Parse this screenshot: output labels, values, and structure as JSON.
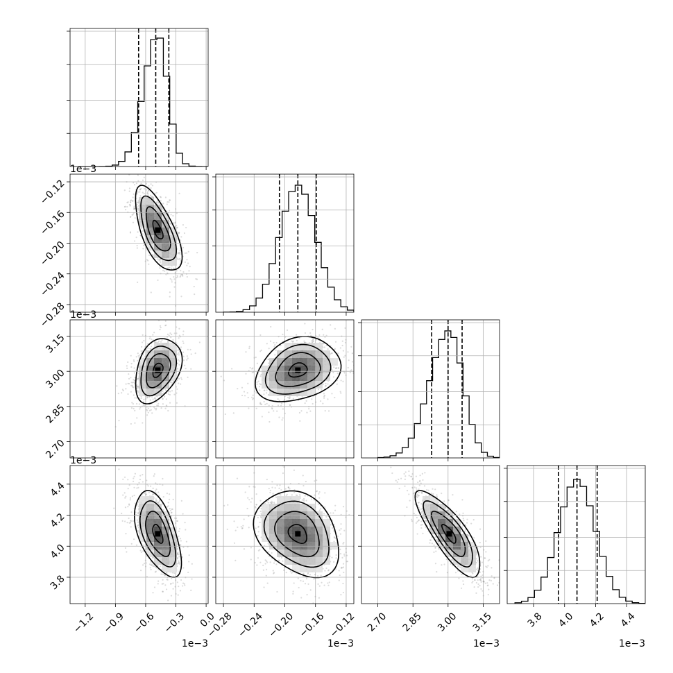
{
  "chart_data": {
    "type": "corner",
    "grid": true,
    "parameters": [
      {
        "range": [
          -1.35,
          0.02
        ],
        "ticks": [
          -1.2,
          -0.9,
          -0.6,
          -0.3,
          0.0
        ],
        "tick_labels": [
          "−1.2",
          "−0.9",
          "−0.6",
          "−0.3",
          "0.0"
        ],
        "offset_text": "1e−3",
        "quantiles": [
          -0.67,
          -0.5,
          -0.37
        ],
        "mean": -0.48,
        "sd": 0.1,
        "hist_peak": 0.93,
        "hist_xstart": -1.25
      },
      {
        "range": [
          -0.29,
          -0.11
        ],
        "ticks": [
          -0.28,
          -0.24,
          -0.2,
          -0.16,
          -0.12
        ],
        "tick_labels": [
          "−0.28",
          "−0.24",
          "−0.20",
          "−0.16",
          "−0.12"
        ],
        "offset_text": "1e−3",
        "quantiles": [
          -0.207,
          -0.183,
          -0.159
        ],
        "mean": -0.183,
        "sd": 0.024,
        "hist_peak": 0.92,
        "hist_xstart": -0.28
      },
      {
        "range": [
          2.63,
          3.22
        ],
        "ticks": [
          2.7,
          2.85,
          3.0,
          3.15
        ],
        "tick_labels": [
          "2.70",
          "2.85",
          "3.00",
          "3.15"
        ],
        "offset_text": "1e−3",
        "quantiles": [
          2.93,
          3.0,
          3.06
        ],
        "mean": 3.005,
        "sd": 0.06,
        "hist_peak": 0.92,
        "hist_xstart": 2.7
      },
      {
        "range": [
          3.63,
          4.52
        ],
        "ticks": [
          3.8,
          4.0,
          4.2,
          4.4
        ],
        "tick_labels": [
          "3.8",
          "4.0",
          "4.2",
          "4.4"
        ],
        "offset_text": "1e−3",
        "quantiles": [
          3.96,
          4.08,
          4.21
        ],
        "mean": 4.08,
        "sd": 0.12,
        "hist_peak": 0.9,
        "hist_xstart": 3.68
      }
    ],
    "correlations": [
      [
        1,
        -0.65,
        0.35,
        -0.55
      ],
      [
        -0.65,
        1,
        0.25,
        -0.3
      ],
      [
        0.35,
        0.25,
        1,
        -0.8
      ],
      [
        -0.55,
        -0.3,
        -0.8,
        1
      ]
    ]
  }
}
